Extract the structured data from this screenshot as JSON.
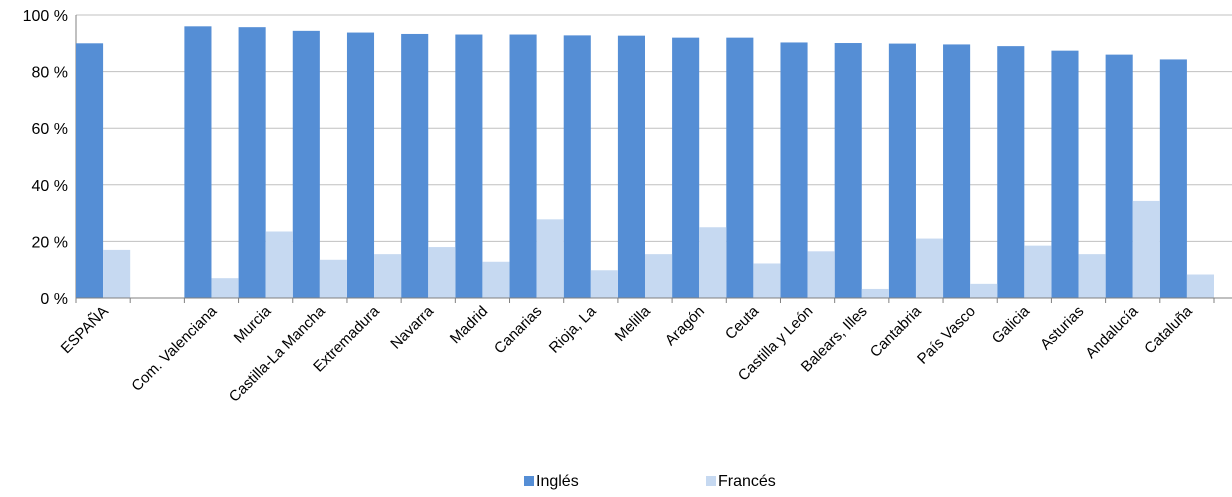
{
  "chart_data": {
    "type": "bar",
    "categories": [
      "ESPAÑA",
      "",
      "Com. Valenciana",
      "Murcia",
      "Castilla-La Mancha",
      "Extremadura",
      "Navarra",
      "Madrid",
      "Canarias",
      "Rioja, La",
      "Melilla",
      "Aragón",
      "Ceuta",
      "Castilla y León",
      "Balears, Illes",
      "Cantabria",
      "País Vasco",
      "Galicia",
      "Asturias",
      "Andalucía",
      "Cataluña"
    ],
    "series": [
      {
        "name": "Inglés",
        "color": "#558ed5",
        "values": [
          90.0,
          null,
          96.0,
          95.7,
          94.4,
          93.8,
          93.3,
          93.1,
          93.1,
          92.8,
          92.7,
          92.0,
          92.0,
          90.3,
          90.1,
          89.9,
          89.6,
          89.0,
          87.4,
          86.0,
          84.3
        ]
      },
      {
        "name": "Francés",
        "color": "#c6d9f1",
        "values": [
          17.0,
          null,
          7.0,
          23.5,
          13.5,
          15.5,
          18.0,
          12.8,
          27.8,
          9.8,
          15.5,
          25.0,
          12.2,
          16.5,
          3.2,
          21.0,
          5.0,
          18.5,
          15.5,
          34.3,
          8.3
        ]
      }
    ],
    "yticks": [
      "0 %",
      "20 %",
      "40 %",
      "60 %",
      "80 %",
      "100 %"
    ],
    "ylim": [
      0,
      100
    ],
    "grid": true,
    "legend": "bottom"
  }
}
